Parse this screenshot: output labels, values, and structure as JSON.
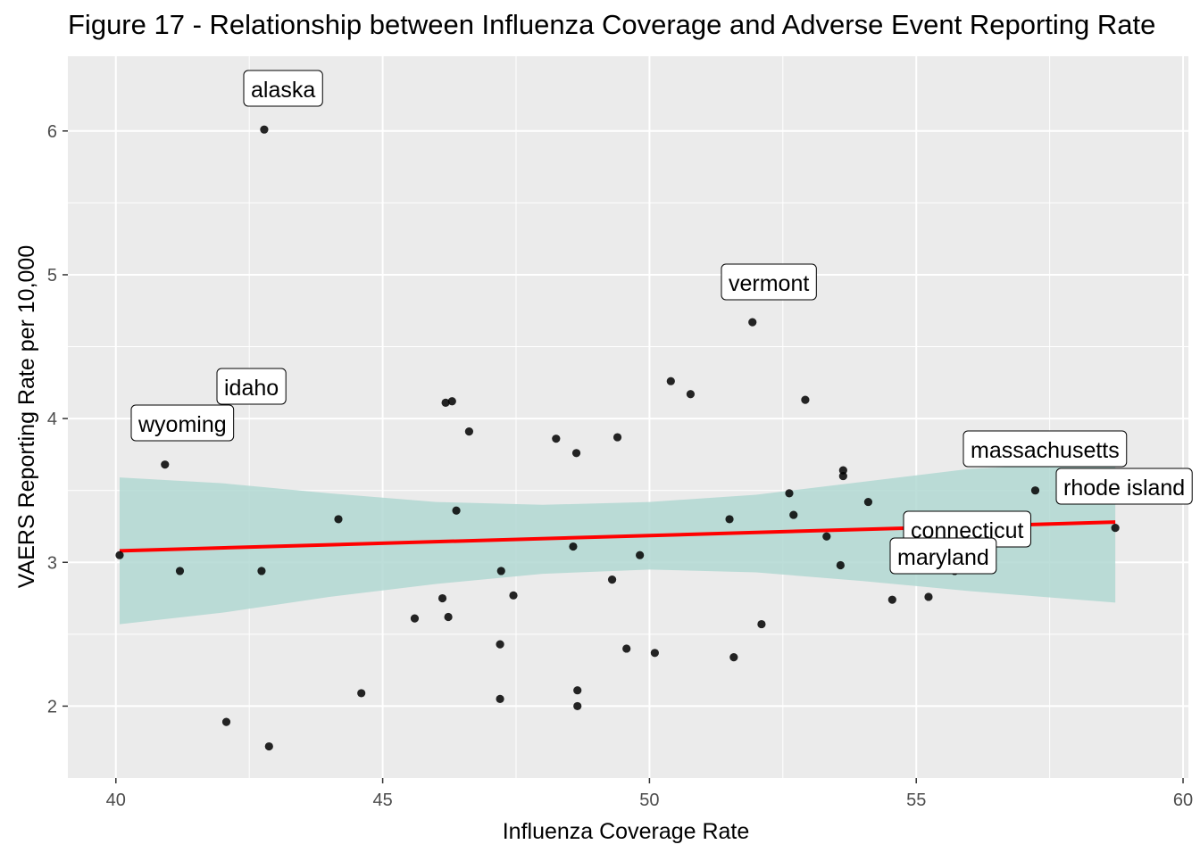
{
  "chart_data": {
    "type": "scatter",
    "title": "Figure 17 - Relationship between Influenza Coverage and Adverse Event Reporting Rate",
    "xlabel": "Influenza Coverage Rate",
    "ylabel": "VAERS Reporting Rate per 10,000",
    "xlim": [
      39.1,
      60.1
    ],
    "ylim": [
      1.5,
      6.52
    ],
    "xticks": [
      40,
      45,
      50,
      55,
      60
    ],
    "yticks": [
      2,
      3,
      4,
      5,
      6
    ],
    "grid": true,
    "points": [
      {
        "x": 40.07,
        "y": 3.05
      },
      {
        "x": 40.92,
        "y": 3.68
      },
      {
        "x": 41.2,
        "y": 2.94
      },
      {
        "x": 42.07,
        "y": 1.89
      },
      {
        "x": 42.73,
        "y": 2.94
      },
      {
        "x": 42.78,
        "y": 6.01
      },
      {
        "x": 42.87,
        "y": 1.72
      },
      {
        "x": 44.17,
        "y": 3.3
      },
      {
        "x": 44.6,
        "y": 2.09
      },
      {
        "x": 45.6,
        "y": 2.61
      },
      {
        "x": 46.12,
        "y": 2.75
      },
      {
        "x": 46.18,
        "y": 4.11
      },
      {
        "x": 46.23,
        "y": 2.62
      },
      {
        "x": 46.3,
        "y": 4.12
      },
      {
        "x": 46.38,
        "y": 3.36
      },
      {
        "x": 46.62,
        "y": 3.91
      },
      {
        "x": 47.2,
        "y": 2.05
      },
      {
        "x": 47.2,
        "y": 2.43
      },
      {
        "x": 47.22,
        "y": 2.94
      },
      {
        "x": 47.45,
        "y": 2.77
      },
      {
        "x": 48.25,
        "y": 3.86
      },
      {
        "x": 48.57,
        "y": 3.11
      },
      {
        "x": 48.63,
        "y": 3.76
      },
      {
        "x": 48.65,
        "y": 2.11
      },
      {
        "x": 48.65,
        "y": 2.0
      },
      {
        "x": 49.3,
        "y": 2.88
      },
      {
        "x": 49.4,
        "y": 3.87
      },
      {
        "x": 49.57,
        "y": 2.4
      },
      {
        "x": 49.82,
        "y": 3.05
      },
      {
        "x": 50.1,
        "y": 2.37
      },
      {
        "x": 50.4,
        "y": 4.26
      },
      {
        "x": 50.77,
        "y": 4.17
      },
      {
        "x": 51.5,
        "y": 3.3
      },
      {
        "x": 51.58,
        "y": 2.34
      },
      {
        "x": 51.93,
        "y": 4.67
      },
      {
        "x": 52.1,
        "y": 2.57
      },
      {
        "x": 52.62,
        "y": 3.48
      },
      {
        "x": 52.7,
        "y": 3.33
      },
      {
        "x": 52.92,
        "y": 4.13
      },
      {
        "x": 53.32,
        "y": 3.18
      },
      {
        "x": 53.58,
        "y": 2.98
      },
      {
        "x": 53.63,
        "y": 3.64
      },
      {
        "x": 53.63,
        "y": 3.6
      },
      {
        "x": 54.1,
        "y": 3.42
      },
      {
        "x": 54.55,
        "y": 2.74
      },
      {
        "x": 55.23,
        "y": 2.76
      },
      {
        "x": 55.72,
        "y": 2.94
      },
      {
        "x": 57.23,
        "y": 3.5
      },
      {
        "x": 58.73,
        "y": 3.24
      }
    ],
    "labels": [
      {
        "text": "alaska",
        "x": 42.78,
        "y": 6.01
      },
      {
        "text": "vermont",
        "x": 51.93,
        "y": 4.67
      },
      {
        "text": "idaho",
        "x": 42.73,
        "y": 4.19
      },
      {
        "text": "wyoming",
        "x": 40.92,
        "y": 3.68
      },
      {
        "text": "massachusetts",
        "x": 57.23,
        "y": 3.5
      },
      {
        "text": "rhode island",
        "x": 58.73,
        "y": 3.24
      },
      {
        "text": "connecticut",
        "x": 55.72,
        "y": 2.94
      },
      {
        "text": "maryland",
        "x": 55.72,
        "y": 2.94
      }
    ],
    "trend": {
      "color": "#ff0000",
      "x": [
        40.07,
        58.73
      ],
      "y": [
        3.08,
        3.28
      ]
    },
    "band": {
      "color": "#b2d8d2",
      "x": [
        40.07,
        42,
        44,
        46,
        48,
        50,
        52,
        54,
        56,
        58.73
      ],
      "lower": [
        2.57,
        2.65,
        2.76,
        2.85,
        2.92,
        2.95,
        2.93,
        2.87,
        2.8,
        2.72
      ],
      "upper": [
        3.59,
        3.55,
        3.48,
        3.42,
        3.4,
        3.42,
        3.47,
        3.56,
        3.65,
        3.7
      ]
    },
    "point_color": "#000000",
    "panel_background": "#ebebeb"
  }
}
